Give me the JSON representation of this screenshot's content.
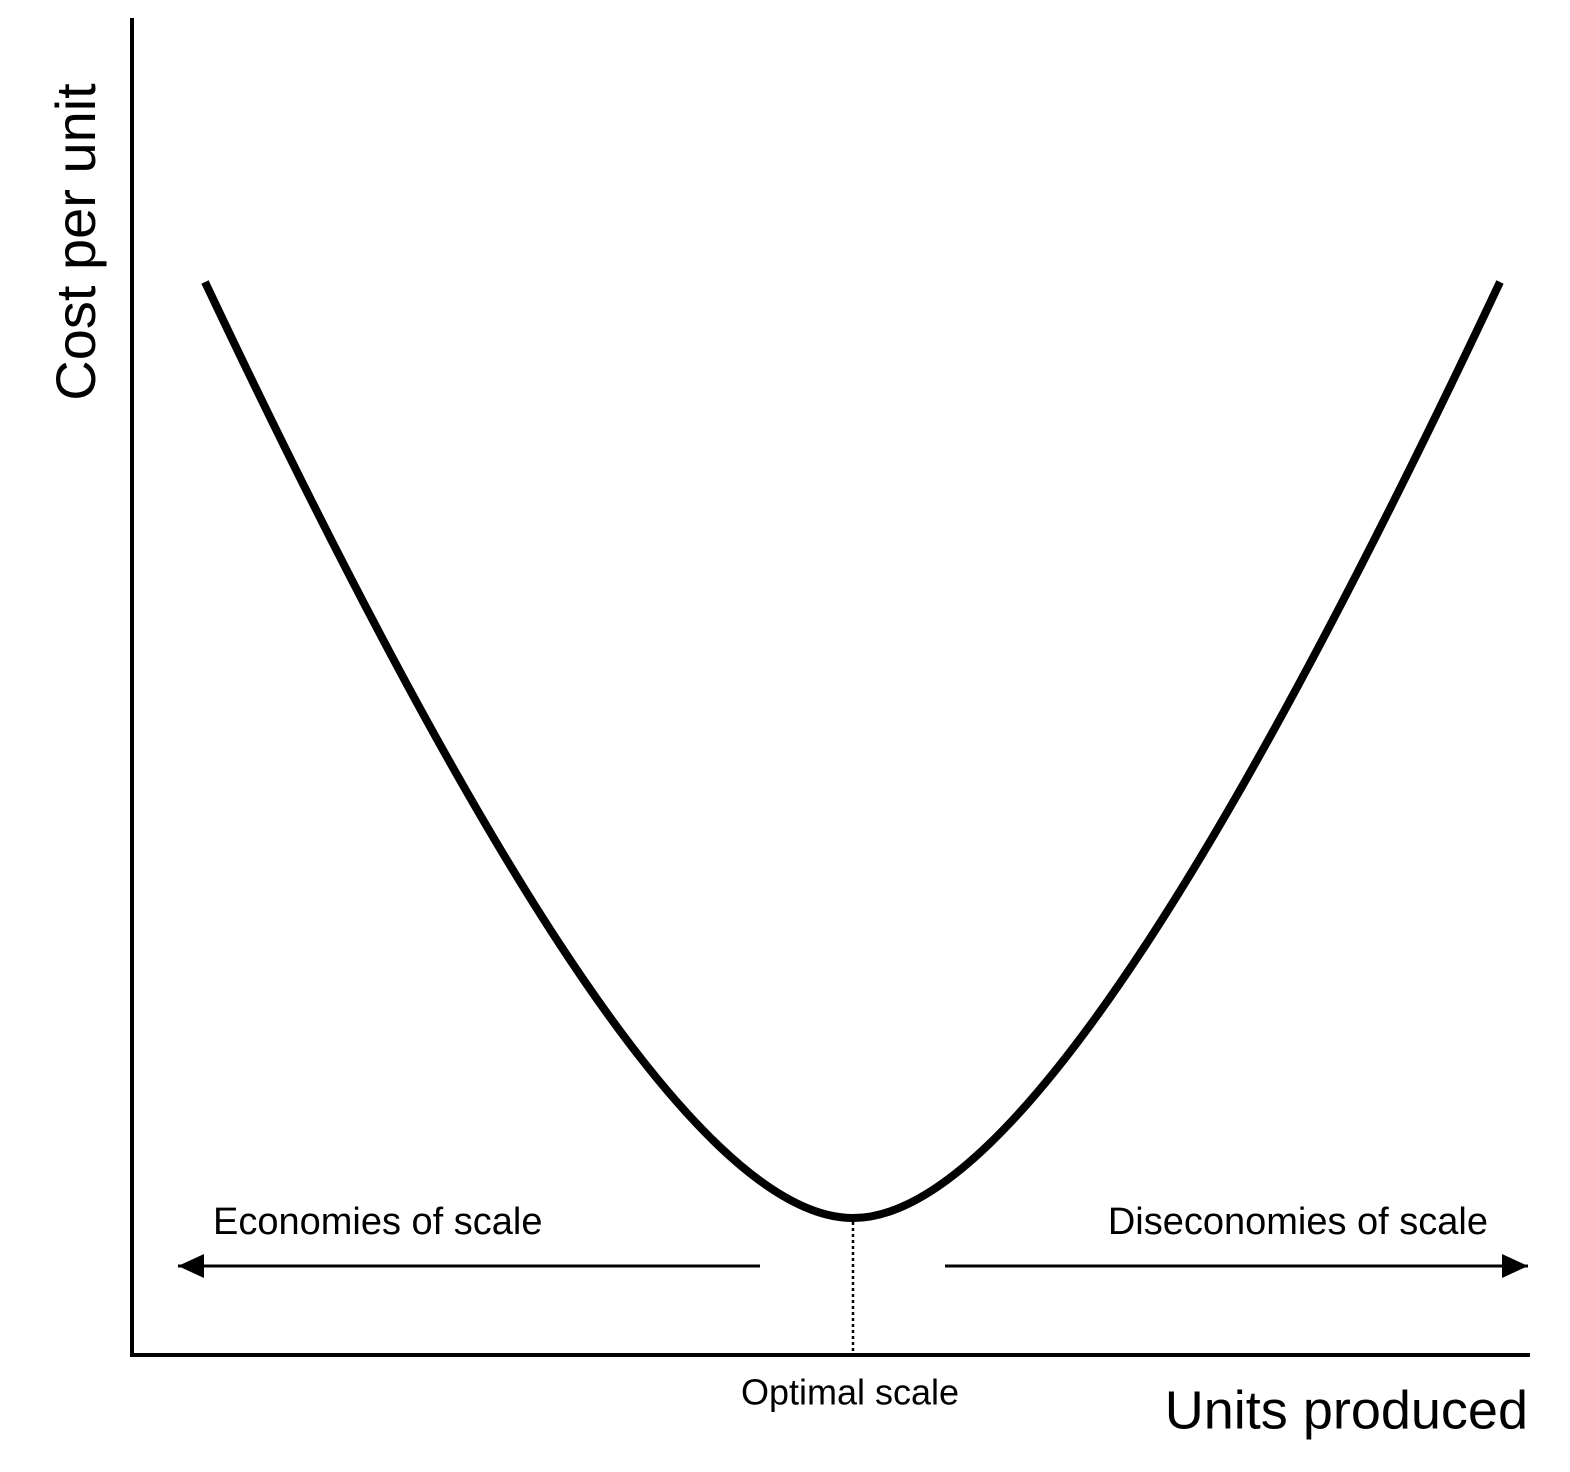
{
  "axes": {
    "y_label": "Cost per unit",
    "x_label": "Units produced"
  },
  "annotations": {
    "left": "Economies of scale",
    "right": "Diseconomies of scale",
    "bottom": "Optimal scale"
  }
}
